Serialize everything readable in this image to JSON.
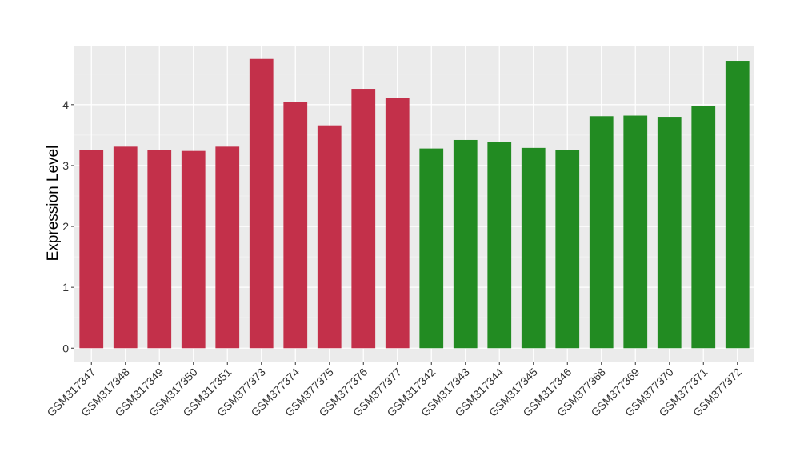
{
  "chart_data": {
    "type": "bar",
    "title": "",
    "xlabel": "",
    "ylabel": "Expression Level",
    "ylim": [
      -0.22,
      4.97
    ],
    "y_ticks": [
      0,
      1,
      2,
      3,
      4
    ],
    "grid": true,
    "background": "#ebebeb",
    "categories": [
      "GSM317347",
      "GSM317348",
      "GSM317349",
      "GSM317350",
      "GSM317351",
      "GSM377373",
      "GSM377374",
      "GSM377375",
      "GSM377376",
      "GSM377377",
      "GSM317342",
      "GSM317343",
      "GSM317344",
      "GSM317345",
      "GSM317346",
      "GSM377368",
      "GSM377369",
      "GSM377370",
      "GSM377371",
      "GSM377372"
    ],
    "values": [
      3.25,
      3.31,
      3.26,
      3.24,
      3.31,
      4.75,
      4.05,
      3.66,
      4.26,
      4.11,
      3.28,
      3.42,
      3.39,
      3.29,
      3.26,
      3.81,
      3.82,
      3.8,
      3.98,
      4.72
    ],
    "bar_colors": [
      "#c3304a",
      "#c3304a",
      "#c3304a",
      "#c3304a",
      "#c3304a",
      "#c3304a",
      "#c3304a",
      "#c3304a",
      "#c3304a",
      "#c3304a",
      "#228b22",
      "#228b22",
      "#228b22",
      "#228b22",
      "#228b22",
      "#228b22",
      "#228b22",
      "#228b22",
      "#228b22",
      "#228b22"
    ]
  }
}
